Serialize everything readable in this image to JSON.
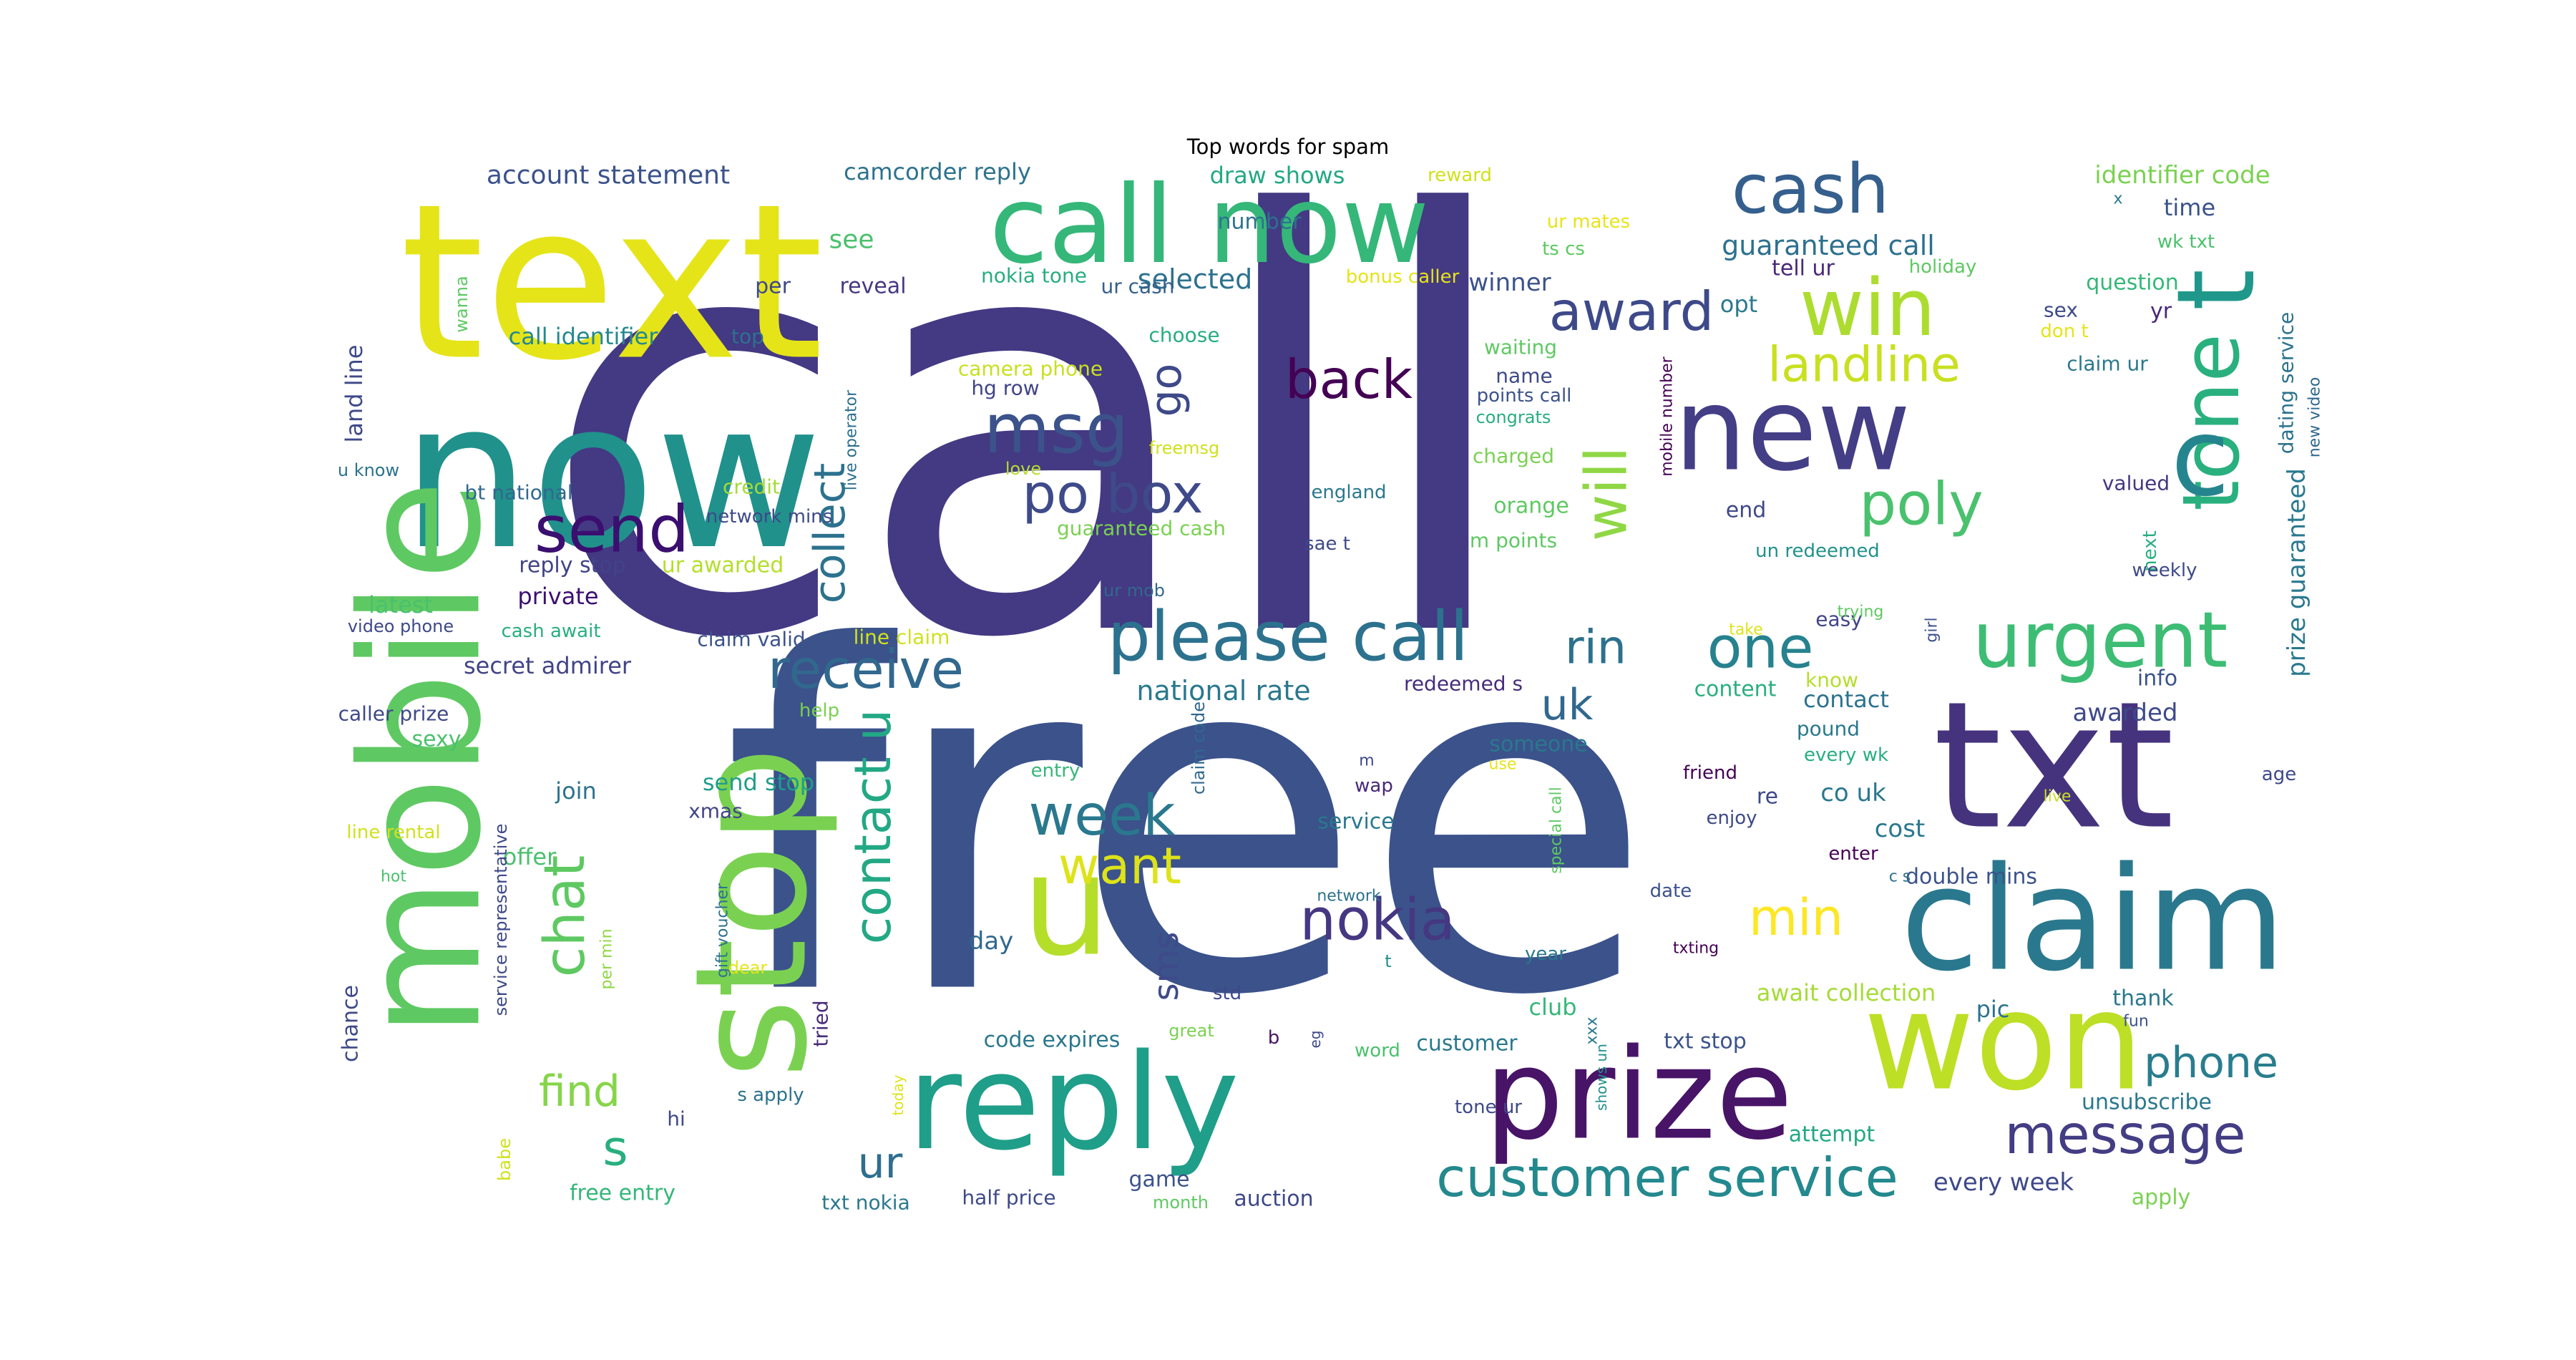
{
  "figure": {
    "title": "Top words for spam"
  },
  "words": [
    {
      "text": "call",
      "color": "#443983"
    },
    {
      "text": "free",
      "color": "#3b528b"
    },
    {
      "text": "text",
      "color": "#e5e419"
    },
    {
      "text": "now",
      "color": "#21918c"
    },
    {
      "text": "mobile",
      "color": "#5ec962"
    },
    {
      "text": "stop",
      "color": "#7ad151"
    },
    {
      "text": "u",
      "color": "#b5de2b"
    },
    {
      "text": "reply",
      "color": "#1f9e89"
    },
    {
      "text": "call now",
      "color": "#35b779"
    },
    {
      "text": "new",
      "color": "#433e85"
    },
    {
      "text": "tone",
      "color": "#2ab07f"
    },
    {
      "text": "txt",
      "color": "#46337e"
    },
    {
      "text": "won",
      "color": "#bddf26"
    },
    {
      "text": "claim",
      "color": "#2a788e"
    },
    {
      "text": "prize",
      "color": "#481467"
    },
    {
      "text": "c",
      "color": "#25858e"
    },
    {
      "text": "t",
      "color": "#1f988b"
    },
    {
      "text": "cash",
      "color": "#355f8d"
    },
    {
      "text": "win",
      "color": "#addc30"
    },
    {
      "text": "award",
      "color": "#3e4989"
    },
    {
      "text": "landline",
      "color": "#c8e020"
    },
    {
      "text": "back",
      "color": "#440154"
    },
    {
      "text": "msg",
      "color": "#3b528b"
    },
    {
      "text": "po box",
      "color": "#3e4a89"
    },
    {
      "text": "send",
      "color": "#3b0f70"
    },
    {
      "text": "poly",
      "color": "#4ac16d"
    },
    {
      "text": "will",
      "color": "#8fd744"
    },
    {
      "text": "go",
      "color": "#3e4989"
    },
    {
      "text": "urgent",
      "color": "#3dbc74"
    },
    {
      "text": "please call",
      "color": "#2c728e"
    },
    {
      "text": "rin",
      "color": "#2d708e"
    },
    {
      "text": "one",
      "color": "#26828e"
    },
    {
      "text": "receive",
      "color": "#31688e"
    },
    {
      "text": "collect",
      "color": "#2c728e"
    },
    {
      "text": "contact u",
      "color": "#22a884"
    },
    {
      "text": "uk",
      "color": "#31688e"
    },
    {
      "text": "week",
      "color": "#2a788e"
    },
    {
      "text": "want",
      "color": "#dde318"
    },
    {
      "text": "nokia",
      "color": "#453781"
    },
    {
      "text": "min",
      "color": "#fde725"
    },
    {
      "text": "chat",
      "color": "#5ec962"
    },
    {
      "text": "sms",
      "color": "#3e4a89"
    },
    {
      "text": "find",
      "color": "#86d549"
    },
    {
      "text": "s",
      "color": "#29af7f"
    },
    {
      "text": "ur",
      "color": "#2e6e8e"
    },
    {
      "text": "phone",
      "color": "#287d8e"
    },
    {
      "text": "message",
      "color": "#433d84"
    },
    {
      "text": "customer service",
      "color": "#23898e"
    },
    {
      "text": "account statement",
      "color": "#3b528b"
    },
    {
      "text": "camcorder reply",
      "color": "#2c728e"
    },
    {
      "text": "draw shows",
      "color": "#22a884"
    },
    {
      "text": "reward",
      "color": "#d0e11c"
    },
    {
      "text": "identifier code",
      "color": "#7ad151"
    },
    {
      "text": "x",
      "color": "#2a788e"
    },
    {
      "text": "wk txt",
      "color": "#4ac16d"
    },
    {
      "text": "time",
      "color": "#3b528b"
    },
    {
      "text": "see",
      "color": "#4ac16d"
    },
    {
      "text": "number",
      "color": "#2c728e"
    },
    {
      "text": "ur mates",
      "color": "#e7e419"
    },
    {
      "text": "ts cs",
      "color": "#5ec962"
    },
    {
      "text": "guaranteed call",
      "color": "#2d708e"
    },
    {
      "text": "tell ur",
      "color": "#482878"
    },
    {
      "text": "holiday",
      "color": "#5ec962"
    },
    {
      "text": "question",
      "color": "#35b779"
    },
    {
      "text": "selected",
      "color": "#2c728e"
    },
    {
      "text": "bonus caller",
      "color": "#e5e419"
    },
    {
      "text": "winner",
      "color": "#3b528b"
    },
    {
      "text": "nokia tone",
      "color": "#27ad81"
    },
    {
      "text": "ur cash",
      "color": "#355f8d"
    },
    {
      "text": "per",
      "color": "#3e4989"
    },
    {
      "text": "reveal",
      "color": "#443983"
    },
    {
      "text": "wanna",
      "color": "#5ec962"
    },
    {
      "text": "top",
      "color": "#2c728e"
    },
    {
      "text": "call identifier",
      "color": "#23898e"
    },
    {
      "text": "choose",
      "color": "#27ad81"
    },
    {
      "text": "opt",
      "color": "#2a788e"
    },
    {
      "text": "sex",
      "color": "#3e4989"
    },
    {
      "text": "yr",
      "color": "#482878"
    },
    {
      "text": "don t",
      "color": "#e5e419"
    },
    {
      "text": "dating service",
      "color": "#2c728e"
    },
    {
      "text": "waiting",
      "color": "#5ec962"
    },
    {
      "text": "camera phone",
      "color": "#c8e020"
    },
    {
      "text": "name",
      "color": "#3e4989"
    },
    {
      "text": "points call",
      "color": "#3b528b"
    },
    {
      "text": "claim ur",
      "color": "#2a788e"
    },
    {
      "text": "new video",
      "color": "#31688e"
    },
    {
      "text": "land line",
      "color": "#3e4989"
    },
    {
      "text": "hg row",
      "color": "#414487"
    },
    {
      "text": "congrats",
      "color": "#27ad81"
    },
    {
      "text": "mobile number",
      "color": "#440154"
    },
    {
      "text": "live operator",
      "color": "#2d708e"
    },
    {
      "text": "freemsg",
      "color": "#d0e11c"
    },
    {
      "text": "charged",
      "color": "#7ad151"
    },
    {
      "text": "u know",
      "color": "#2c728e"
    },
    {
      "text": "love",
      "color": "#b5de2b"
    },
    {
      "text": "credit",
      "color": "#a5db36"
    },
    {
      "text": "bt national",
      "color": "#31688e"
    },
    {
      "text": "england",
      "color": "#2a788e"
    },
    {
      "text": "orange",
      "color": "#5ec962"
    },
    {
      "text": "valued",
      "color": "#453781"
    },
    {
      "text": "end",
      "color": "#3e4989"
    },
    {
      "text": "network mins",
      "color": "#3e4989"
    },
    {
      "text": "guaranteed cash",
      "color": "#7ad151"
    },
    {
      "text": "sae t",
      "color": "#3e4989"
    },
    {
      "text": "m points",
      "color": "#5ec962"
    },
    {
      "text": "un redeemed",
      "color": "#21918c"
    },
    {
      "text": "prize guaranteed",
      "color": "#2a788e"
    },
    {
      "text": "next",
      "color": "#29af7f"
    },
    {
      "text": "weekly",
      "color": "#3e4989"
    },
    {
      "text": "reply stop",
      "color": "#414487"
    },
    {
      "text": "ur awarded",
      "color": "#b5de2b"
    },
    {
      "text": "private",
      "color": "#3b0f70"
    },
    {
      "text": "latest",
      "color": "#4ac16d"
    },
    {
      "text": "video phone",
      "color": "#3e4989"
    },
    {
      "text": "cash await",
      "color": "#29af7f"
    },
    {
      "text": "claim valid",
      "color": "#3b528b"
    },
    {
      "text": "line claim",
      "color": "#d0e11c"
    },
    {
      "text": "ur mob",
      "color": "#31688e"
    },
    {
      "text": "easy",
      "color": "#414487"
    },
    {
      "text": "trying",
      "color": "#5ec962"
    },
    {
      "text": "secret admirer",
      "color": "#414487"
    },
    {
      "text": "national rate",
      "color": "#2a788e"
    },
    {
      "text": "redeemed s",
      "color": "#472d7b"
    },
    {
      "text": "content",
      "color": "#29af7f"
    },
    {
      "text": "take",
      "color": "#dde318"
    },
    {
      "text": "girl",
      "color": "#3b528b"
    },
    {
      "text": "know",
      "color": "#b5de2b"
    },
    {
      "text": "info",
      "color": "#3b528b"
    },
    {
      "text": "caller prize",
      "color": "#3e4989"
    },
    {
      "text": "help",
      "color": "#7ad151"
    },
    {
      "text": "contact",
      "color": "#2c728e"
    },
    {
      "text": "pound",
      "color": "#2a788e"
    },
    {
      "text": "awarded",
      "color": "#3e4989"
    },
    {
      "text": "sexy",
      "color": "#4ac16d"
    },
    {
      "text": "someone",
      "color": "#2a788e"
    },
    {
      "text": "every wk",
      "color": "#27ad81"
    },
    {
      "text": "claim code",
      "color": "#31688e"
    },
    {
      "text": "use",
      "color": "#e5e419"
    },
    {
      "text": "m",
      "color": "#3e4989"
    },
    {
      "text": "entry",
      "color": "#35b779"
    },
    {
      "text": "wap",
      "color": "#482878"
    },
    {
      "text": "friend",
      "color": "#440154"
    },
    {
      "text": "re",
      "color": "#3e4989"
    },
    {
      "text": "age",
      "color": "#3e4989"
    },
    {
      "text": "join",
      "color": "#2c728e"
    },
    {
      "text": "send stop",
      "color": "#1f9e89"
    },
    {
      "text": "enjoy",
      "color": "#3e4989"
    },
    {
      "text": "co uk",
      "color": "#2a788e"
    },
    {
      "text": "live",
      "color": "#c8e020"
    },
    {
      "text": "xmas",
      "color": "#414487"
    },
    {
      "text": "service",
      "color": "#2a788e"
    },
    {
      "text": "special call",
      "color": "#5ec962"
    },
    {
      "text": "cost",
      "color": "#2a788e"
    },
    {
      "text": "line rental",
      "color": "#d0e11c"
    },
    {
      "text": "offer",
      "color": "#4ac16d"
    },
    {
      "text": "enter",
      "color": "#440154"
    },
    {
      "text": "double mins",
      "color": "#3b528b"
    },
    {
      "text": "c s",
      "color": "#2c728e"
    },
    {
      "text": "network",
      "color": "#2c728e"
    },
    {
      "text": "date",
      "color": "#3b528b"
    },
    {
      "text": "service representative",
      "color": "#3e4989"
    },
    {
      "text": "hot",
      "color": "#4ac16d"
    },
    {
      "text": "gift voucher",
      "color": "#2c728e"
    },
    {
      "text": "day",
      "color": "#31688e"
    },
    {
      "text": "txting",
      "color": "#440154"
    },
    {
      "text": "t",
      "color": "#21918c"
    },
    {
      "text": "year",
      "color": "#2a788e"
    },
    {
      "text": "dear",
      "color": "#e5e419"
    },
    {
      "text": "per min",
      "color": "#8fd744"
    },
    {
      "text": "await collection",
      "color": "#a5db36"
    },
    {
      "text": "chance",
      "color": "#3e4989"
    },
    {
      "text": "std",
      "color": "#3e4989"
    },
    {
      "text": "club",
      "color": "#35b779"
    },
    {
      "text": "pic",
      "color": "#2c728e"
    },
    {
      "text": "thank",
      "color": "#2a788e"
    },
    {
      "text": "fun",
      "color": "#3b528b"
    },
    {
      "text": "tried",
      "color": "#472d7b"
    },
    {
      "text": "great",
      "color": "#7ad151"
    },
    {
      "text": "b",
      "color": "#481467"
    },
    {
      "text": "eg",
      "color": "#3e4989"
    },
    {
      "text": "xxx",
      "color": "#2a788e"
    },
    {
      "text": "code expires",
      "color": "#2a788e"
    },
    {
      "text": "word",
      "color": "#4ac16d"
    },
    {
      "text": "customer",
      "color": "#2a788e"
    },
    {
      "text": "txt stop",
      "color": "#3b528b"
    },
    {
      "text": "shows un",
      "color": "#21918c"
    },
    {
      "text": "hi",
      "color": "#3e4989"
    },
    {
      "text": "s apply",
      "color": "#2c728e"
    },
    {
      "text": "unsubscribe",
      "color": "#2a788e"
    },
    {
      "text": "tone ur",
      "color": "#3e4989"
    },
    {
      "text": "babe",
      "color": "#d0e11c"
    },
    {
      "text": "today",
      "color": "#dde318"
    },
    {
      "text": "attempt",
      "color": "#22a884"
    },
    {
      "text": "free entry",
      "color": "#35b779"
    },
    {
      "text": "game",
      "color": "#3b528b"
    },
    {
      "text": "every week",
      "color": "#3e4989"
    },
    {
      "text": "txt nokia",
      "color": "#2a788e"
    },
    {
      "text": "half price",
      "color": "#3e4989"
    },
    {
      "text": "month",
      "color": "#5ec962"
    },
    {
      "text": "auction",
      "color": "#3e4989"
    },
    {
      "text": "apply",
      "color": "#7ad151"
    }
  ]
}
